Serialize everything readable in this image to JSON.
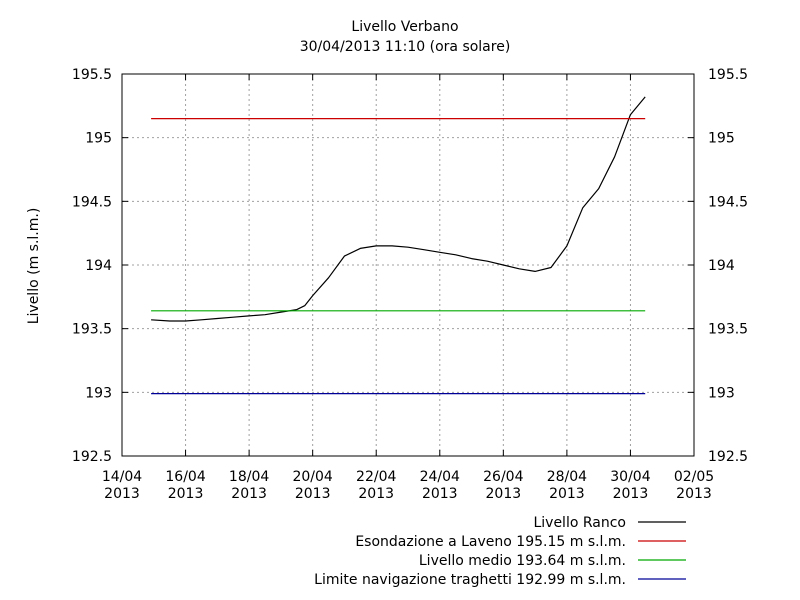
{
  "chart_data": {
    "type": "line",
    "title": "Livello Verbano",
    "subtitle": "30/04/2013 11:10 (ora solare)",
    "ylabel": "Livello (m s.l.m.)",
    "xlabel": "",
    "xlim": [
      "2013-04-14",
      "2013-05-02"
    ],
    "ylim": [
      192.5,
      195.5
    ],
    "grid": true,
    "legend_position": "bottom-right",
    "x_ticks": [
      {
        "date": "2013-04-14",
        "label1": "14/04",
        "label2": "2013"
      },
      {
        "date": "2013-04-16",
        "label1": "16/04",
        "label2": "2013"
      },
      {
        "date": "2013-04-18",
        "label1": "18/04",
        "label2": "2013"
      },
      {
        "date": "2013-04-20",
        "label1": "20/04",
        "label2": "2013"
      },
      {
        "date": "2013-04-22",
        "label1": "22/04",
        "label2": "2013"
      },
      {
        "date": "2013-04-24",
        "label1": "24/04",
        "label2": "2013"
      },
      {
        "date": "2013-04-26",
        "label1": "26/04",
        "label2": "2013"
      },
      {
        "date": "2013-04-28",
        "label1": "28/04",
        "label2": "2013"
      },
      {
        "date": "2013-04-30",
        "label1": "30/04",
        "label2": "2013"
      },
      {
        "date": "2013-05-02",
        "label1": "02/05",
        "label2": "2013"
      }
    ],
    "y_ticks": [
      {
        "value": 195.5,
        "label": "195.5"
      },
      {
        "value": 195,
        "label": "195"
      },
      {
        "value": 194.5,
        "label": "194.5"
      },
      {
        "value": 194,
        "label": "194"
      },
      {
        "value": 193.5,
        "label": "193.5"
      },
      {
        "value": 193,
        "label": "193"
      },
      {
        "value": 192.5,
        "label": "192.5"
      }
    ],
    "series": [
      {
        "name": "Livello Ranco",
        "color": "#000000",
        "x": [
          "2013-04-14T22:00",
          "2013-04-15T12:00",
          "2013-04-16T00:00",
          "2013-04-16T12:00",
          "2013-04-17T00:00",
          "2013-04-17T12:00",
          "2013-04-18T00:00",
          "2013-04-18T12:00",
          "2013-04-19T00:00",
          "2013-04-19T12:00",
          "2013-04-19T18:00",
          "2013-04-20T00:00",
          "2013-04-20T12:00",
          "2013-04-21T00:00",
          "2013-04-21T12:00",
          "2013-04-22T00:00",
          "2013-04-22T12:00",
          "2013-04-23T00:00",
          "2013-04-23T12:00",
          "2013-04-24T00:00",
          "2013-04-24T12:00",
          "2013-04-25T00:00",
          "2013-04-25T12:00",
          "2013-04-26T00:00",
          "2013-04-26T12:00",
          "2013-04-27T00:00",
          "2013-04-27T12:00",
          "2013-04-28T00:00",
          "2013-04-28T12:00",
          "2013-04-29T00:00",
          "2013-04-29T12:00",
          "2013-04-30T00:00",
          "2013-04-30T11:10"
        ],
        "y": [
          193.57,
          193.56,
          193.56,
          193.57,
          193.58,
          193.59,
          193.6,
          193.61,
          193.63,
          193.65,
          193.68,
          193.76,
          193.9,
          194.07,
          194.13,
          194.15,
          194.15,
          194.14,
          194.12,
          194.1,
          194.08,
          194.05,
          194.03,
          194.0,
          193.97,
          193.95,
          193.98,
          194.15,
          194.45,
          194.6,
          194.85,
          195.18,
          195.32
        ]
      },
      {
        "name": "Esondazione a Laveno 195.15 m s.l.m.",
        "color": "#cc0000",
        "x": [
          "2013-04-14T22:00",
          "2013-04-30T11:10"
        ],
        "y": [
          195.15,
          195.15
        ]
      },
      {
        "name": "Livello medio 193.64 m s.l.m.",
        "color": "#00aa00",
        "x": [
          "2013-04-14T22:00",
          "2013-04-30T11:10"
        ],
        "y": [
          193.64,
          193.64
        ]
      },
      {
        "name": "Limite navigazione traghetti 192.99 m s.l.m.",
        "color": "#000099",
        "x": [
          "2013-04-14T22:00",
          "2013-04-30T11:10"
        ],
        "y": [
          192.99,
          192.99
        ]
      }
    ]
  }
}
